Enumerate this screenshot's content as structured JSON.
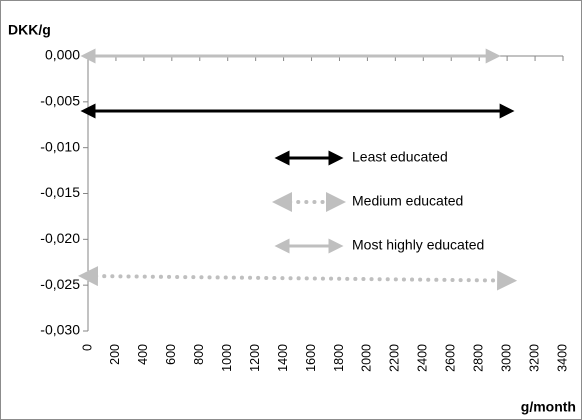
{
  "chart_data": {
    "type": "line",
    "x_label": "g/month",
    "y_label": "DKK/g",
    "xlim": [
      0,
      3400
    ],
    "xticks": [
      0,
      200,
      400,
      600,
      800,
      1000,
      1200,
      1400,
      1600,
      1800,
      2000,
      2200,
      2400,
      2600,
      2800,
      3000,
      3200,
      3400
    ],
    "ylim": [
      -0.03,
      0
    ],
    "yticks": [
      {
        "value": 0,
        "label": "0,000"
      },
      {
        "value": -0.005,
        "label": "-0,005"
      },
      {
        "value": -0.01,
        "label": "-0,010"
      },
      {
        "value": -0.015,
        "label": "-0,015"
      },
      {
        "value": -0.02,
        "label": "-0,020"
      },
      {
        "value": -0.025,
        "label": "-0,025"
      },
      {
        "value": -0.03,
        "label": "-0,030"
      }
    ],
    "series": [
      {
        "name": "Least educated",
        "color": "#000000",
        "style": "solid",
        "x": [
          0,
          3000
        ],
        "values": [
          -0.006,
          -0.006
        ]
      },
      {
        "name": "Medium educated",
        "color": "#bfbfbf",
        "style": "dotted",
        "x": [
          0,
          3000
        ],
        "values": [
          -0.024,
          -0.0245
        ]
      },
      {
        "name": "Most highly educated",
        "color": "#bfbfbf",
        "style": "solid",
        "x": [
          0,
          2900
        ],
        "values": [
          0,
          0
        ]
      }
    ]
  }
}
